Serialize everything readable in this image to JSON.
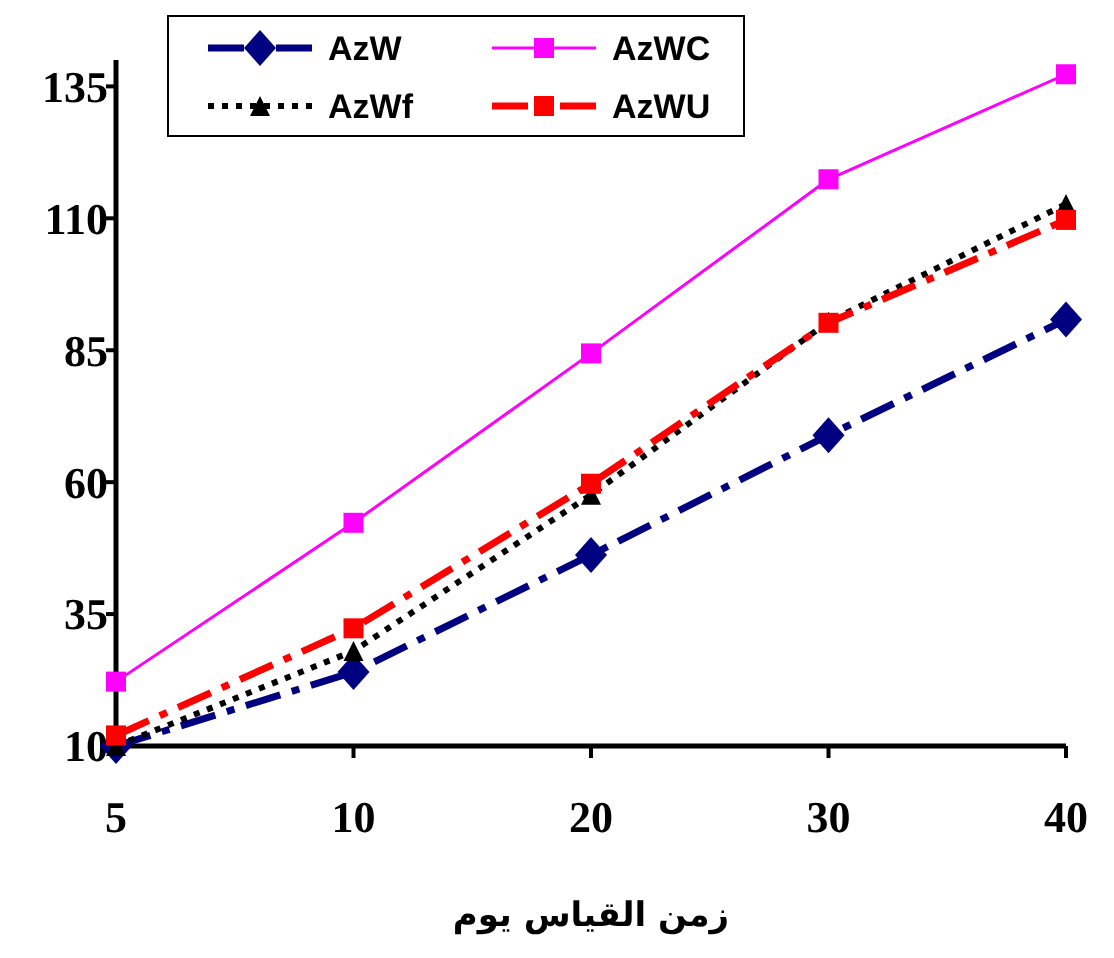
{
  "chart_data": {
    "type": "line",
    "xlabel": "زمن القياس يوم",
    "categories": [
      "5",
      "10",
      "20",
      "30",
      "40"
    ],
    "series": [
      {
        "name": "AzW",
        "color": "#000080",
        "marker": "diamond",
        "line_style": "dashdot",
        "values": [
          10,
          24,
          46.2,
          68.9,
          90.8
        ]
      },
      {
        "name": "AzWC",
        "color": "#ff00ff",
        "marker": "square",
        "line_style": "solid",
        "values": [
          22.2,
          52.3,
          84.4,
          117.4,
          137.3
        ]
      },
      {
        "name": "AzWf",
        "color": "#000000",
        "marker": "triangle",
        "line_style": "dotted",
        "values": [
          10,
          28,
          57.6,
          90.4,
          112.7
        ]
      },
      {
        "name": "AzWU",
        "color": "#ff0000",
        "marker": "square",
        "line_style": "dashdot",
        "values": [
          12,
          32.3,
          59.7,
          90.2,
          109.7
        ]
      }
    ],
    "ylim": [
      10,
      140
    ],
    "yticks": [
      10,
      35,
      60,
      85,
      110,
      135
    ],
    "grid": false,
    "legend": "top"
  }
}
